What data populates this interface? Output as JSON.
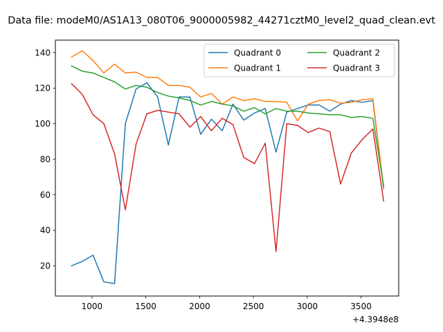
{
  "chart_data": {
    "type": "line",
    "title": "Data file: modeM0/AS1A13_080T06_9000005982_44271cztM0_level2_quad_clean.evt",
    "xlabel": "",
    "ylabel": "",
    "x_offset_label": "+4.3948e8",
    "xlim": [
      660,
      3850
    ],
    "ylim": [
      3,
      147
    ],
    "xticks": [
      1000,
      1500,
      2000,
      2500,
      3000,
      3500
    ],
    "yticks": [
      20,
      40,
      60,
      80,
      100,
      120,
      140
    ],
    "grid": false,
    "legend_position": "upper-right",
    "legend_columns": 2,
    "x": [
      810,
      910,
      1010,
      1110,
      1210,
      1310,
      1410,
      1510,
      1610,
      1710,
      1810,
      1910,
      2010,
      2110,
      2210,
      2310,
      2410,
      2510,
      2610,
      2710,
      2810,
      2910,
      3010,
      3110,
      3210,
      3310,
      3410,
      3510,
      3610,
      3710
    ],
    "series": [
      {
        "name": "Quadrant 0",
        "color": "#1f77b4",
        "values": [
          20,
          22.5,
          26,
          11,
          10,
          100,
          119.5,
          123,
          115,
          88,
          115,
          115,
          94,
          102.5,
          96,
          111,
          102,
          106,
          108.5,
          84,
          106.5,
          108.5,
          110.5,
          110.5,
          107,
          111,
          113,
          112,
          113,
          63.5
        ]
      },
      {
        "name": "Quadrant 1",
        "color": "#ff7f0e",
        "values": [
          137.5,
          141,
          135.5,
          128.5,
          133.5,
          128.5,
          129,
          126,
          126,
          121.5,
          121.5,
          120.5,
          115,
          117,
          111,
          115,
          113,
          114,
          112.5,
          112.5,
          112,
          101.5,
          111,
          113,
          113.5,
          111.5,
          112,
          113.5,
          114,
          64
        ]
      },
      {
        "name": "Quadrant 2",
        "color": "#2ca02c",
        "values": [
          132.5,
          129.5,
          128.5,
          126,
          123.5,
          119.5,
          121.5,
          120.5,
          117.5,
          115.5,
          114.5,
          113,
          110.5,
          112.5,
          111,
          110,
          107,
          109,
          105.5,
          108.5,
          107,
          107,
          106,
          105.5,
          105,
          105,
          103.5,
          104,
          103,
          65
        ]
      },
      {
        "name": "Quadrant 3",
        "color": "#d62728",
        "values": [
          122.5,
          116.5,
          105,
          100,
          83,
          51.5,
          88.5,
          105.5,
          107.5,
          106.5,
          105.5,
          98,
          104,
          96,
          103,
          99.5,
          81,
          77.5,
          89,
          28,
          100,
          99,
          95,
          97.5,
          95.5,
          66,
          83.5,
          91,
          97,
          56.5
        ]
      }
    ]
  }
}
